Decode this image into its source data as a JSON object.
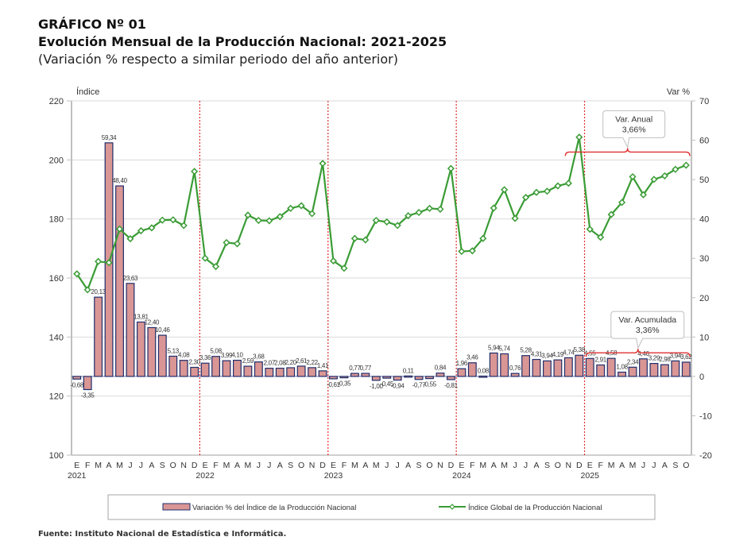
{
  "header": {
    "title_line1": "GRÁFICO Nº 01",
    "title_line2": "Evolución Mensual de la Producción Nacional: 2021-2025",
    "subtitle": "(Variación % respecto a similar periodo del año anterior)"
  },
  "source": "Fuente: Instituto Nacional de Estadística e Informática.",
  "chart_data": {
    "type": "bar+line",
    "title": "Evolución Mensual de la Producción Nacional: 2021-2025",
    "subtitle": "(Variación % respecto a similar periodo del año anterior)",
    "left_axis_label": "Índice",
    "right_axis_label": "Var %",
    "left_ylim": [
      100,
      220
    ],
    "left_ticks": [
      "220",
      "200",
      "180",
      "160",
      "140",
      "120",
      "100"
    ],
    "right_ylim": [
      -20,
      70
    ],
    "right_ticks": [
      "70",
      "60",
      "50",
      "40",
      "30",
      "20",
      "10",
      "0",
      "-10",
      "-20"
    ],
    "grid": true,
    "legend_position": "bottom",
    "years": [
      "2021",
      "2022",
      "2023",
      "2024",
      "2025"
    ],
    "month_labels": [
      "E",
      "F",
      "M",
      "A",
      "M",
      "J",
      "J",
      "A",
      "S",
      "O",
      "N",
      "D"
    ],
    "categories": [
      "E-2021",
      "F-2021",
      "M-2021",
      "A-2021",
      "M-2021",
      "J-2021",
      "J-2021",
      "A-2021",
      "S-2021",
      "O-2021",
      "N-2021",
      "D-2021",
      "E-2022",
      "F-2022",
      "M-2022",
      "A-2022",
      "M-2022",
      "J-2022",
      "J-2022",
      "A-2022",
      "S-2022",
      "O-2022",
      "N-2022",
      "D-2022",
      "E-2023",
      "F-2023",
      "M-2023",
      "A-2023",
      "M-2023",
      "J-2023",
      "J-2023",
      "A-2023",
      "S-2023",
      "O-2023",
      "N-2023",
      "D-2023",
      "E-2024",
      "F-2024",
      "M-2024",
      "A-2024",
      "M-2024",
      "J-2024",
      "J-2024",
      "A-2024",
      "S-2024",
      "O-2024",
      "N-2024",
      "D-2024",
      "E-2025",
      "F-2025",
      "M-2025",
      "A-2025",
      "M-2025",
      "J-2025",
      "J-2025",
      "A-2025",
      "S-2025",
      "O-2025"
    ],
    "series": [
      {
        "name": "Variación % del Índice de la Producción Nacional",
        "type": "bar",
        "axis": "right",
        "color": "#d99694",
        "border_color": "#1f2d6b",
        "values": [
          -0.68,
          -3.35,
          20.13,
          59.34,
          48.4,
          23.63,
          13.81,
          12.4,
          10.46,
          5.13,
          4.08,
          2.3,
          3.36,
          5.08,
          3.99,
          4.1,
          2.59,
          3.68,
          2.07,
          2.08,
          2.2,
          2.61,
          2.22,
          1.41,
          -0.61,
          -0.35,
          0.77,
          0.77,
          -1.0,
          -0.45,
          -0.94,
          0.11,
          -0.77,
          -0.55,
          0.84,
          -0.81,
          1.96,
          3.46,
          0.08,
          5.94,
          5.74,
          0.76,
          5.28,
          4.31,
          3.94,
          4.19,
          4.74,
          5.38,
          4.55,
          2.91,
          4.58,
          1.08,
          2.34,
          4.46,
          3.29,
          2.98,
          3.94,
          3.62
        ],
        "labels": [
          "-0,68",
          "-3,35",
          "20,13",
          "59,34",
          "48,40",
          "23,63",
          "13,81",
          "12,40",
          "10,46",
          "5,13",
          "4,08",
          "2,30",
          "3,36",
          "5,08",
          "3,99",
          "4,10",
          "2,59",
          "3,68",
          "2,07",
          "2,08",
          "2,20",
          "2,61",
          "2,22",
          "1,41",
          "-0,61",
          "-0,35",
          "0,77",
          "0,77",
          "-1,00",
          "-0,45",
          "-0,94",
          "0,11",
          "-0,77",
          "-0,55",
          "0,84",
          "-0,81",
          "1,96",
          "3,46",
          "0,08",
          "5,94",
          "5,74",
          "0,76",
          "5,28",
          "4,31",
          "3,94",
          "4,19",
          "4,74",
          "5,38",
          "4,55",
          "2,91",
          "4,58",
          "1,08",
          "2,34",
          "4,46",
          "3,29",
          "2,98",
          "3,94",
          "3,62"
        ]
      },
      {
        "name": "Índice Global de la Producción Nacional",
        "type": "line",
        "axis": "left",
        "color": "#3a9c35",
        "values": [
          161.4,
          156.0,
          165.6,
          165.2,
          176.6,
          173.3,
          176.0,
          177.0,
          179.6,
          179.7,
          177.8,
          196.1,
          166.7,
          163.9,
          172.0,
          171.6,
          181.3,
          179.5,
          179.4,
          180.8,
          183.6,
          184.5,
          181.8,
          198.8,
          165.8,
          163.3,
          173.4,
          172.9,
          179.5,
          179.0,
          177.8,
          181.1,
          182.2,
          183.6,
          183.3,
          197.1,
          169.0,
          169.2,
          173.4,
          183.7,
          189.9,
          180.2,
          187.3,
          189.0,
          189.4,
          191.2,
          192.1,
          207.7,
          176.5,
          173.8,
          181.5,
          185.6,
          194.3,
          188.2,
          193.4,
          194.6,
          196.8,
          198.2
        ]
      }
    ],
    "annotations": [
      {
        "title": "Var. Anual",
        "value": "3,66%",
        "range": [
          "N-2024",
          "O-2025"
        ],
        "axis_value": 57
      },
      {
        "title": "Var. Acumulada",
        "value": "3,36%",
        "range": [
          "E-2025",
          "O-2025"
        ],
        "axis_value": 6
      }
    ],
    "year_dividers": [
      "E-2022",
      "E-2023",
      "E-2024",
      "E-2025"
    ],
    "divider_color": "#e03030",
    "bracket_color": "#e03030"
  }
}
